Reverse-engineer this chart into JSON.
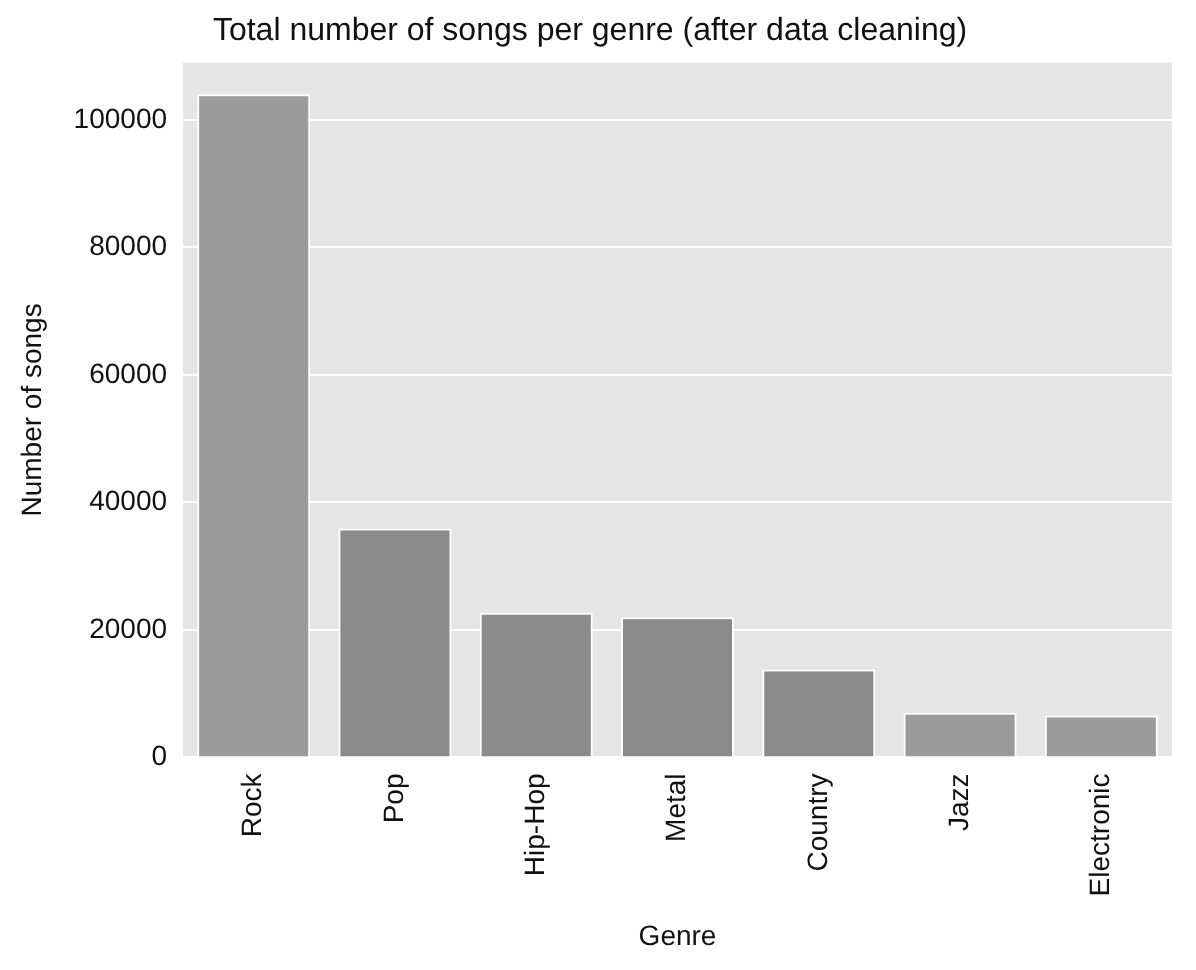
{
  "chart_data": {
    "type": "bar",
    "title": "Total number of songs per genre (after data cleaning)",
    "xlabel": "Genre",
    "ylabel": "Number of songs",
    "categories": [
      "Rock",
      "Pop",
      "Hip-Hop",
      "Metal",
      "Country",
      "Jazz",
      "Electronic"
    ],
    "values": [
      104000,
      35900,
      22700,
      22000,
      13800,
      7000,
      6600
    ],
    "colors": [
      "#9b9b9b",
      "#8a8a8a",
      "#8a8a8a",
      "#8a8a8a",
      "#8a8a8a",
      "#9b9b9b",
      "#9b9b9b"
    ],
    "ylim": [
      0,
      109000
    ],
    "yticks": [
      0,
      20000,
      40000,
      60000,
      80000,
      100000
    ],
    "grid": "y"
  }
}
